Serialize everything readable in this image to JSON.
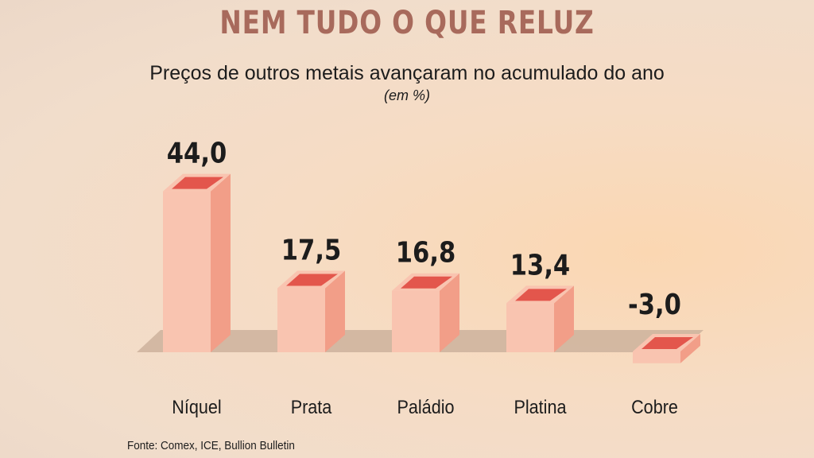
{
  "title": "NEM TUDO O QUE RELUZ",
  "subtitle": "Preços de outros metais avançaram no acumulado do ano",
  "unit": "(em %)",
  "source": "Fonte: Comex, ICE, Bullion Bulletin",
  "colors": {
    "title": "#a86a5c",
    "bar_front": "#f9c4b0",
    "bar_side": "#f29e88",
    "bar_top_rim": "#f9c4b0",
    "bar_top_inner": "#e3564c",
    "floor": "#cdb19c"
  },
  "chart_data": {
    "type": "bar",
    "categories": [
      "Níquel",
      "Prata",
      "Paládio",
      "Platina",
      "Cobre"
    ],
    "values": [
      44.0,
      17.5,
      16.8,
      13.4,
      -3.0
    ],
    "value_labels": [
      "44,0",
      "17,5",
      "16,8",
      "13,4",
      "-3,0"
    ],
    "title": "NEM TUDO O QUE RELUZ",
    "subtitle": "Preços de outros metais avançaram no acumulado do ano",
    "ylabel": "(em %)",
    "grid": false
  }
}
